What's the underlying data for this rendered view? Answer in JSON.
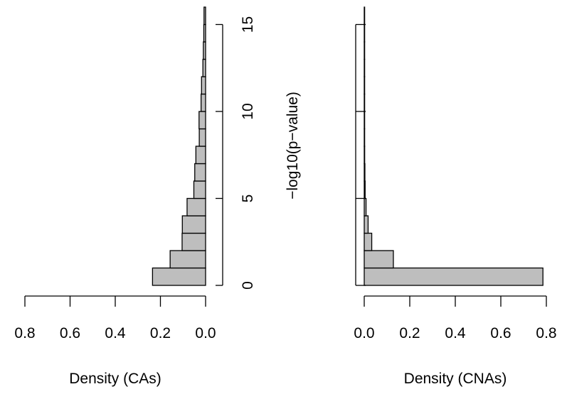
{
  "chart_data": [
    {
      "type": "bar",
      "orientation": "horizontal",
      "direction": "right-to-left",
      "bin_width": 1,
      "bins_start": [
        0,
        1,
        2,
        3,
        4,
        5,
        6,
        7,
        8,
        9,
        10,
        11,
        12,
        13,
        14,
        15
      ],
      "values": [
        0.235,
        0.157,
        0.104,
        0.103,
        0.082,
        0.052,
        0.048,
        0.043,
        0.028,
        0.029,
        0.02,
        0.018,
        0.012,
        0.01,
        0.008,
        0.007
      ],
      "xlabel": "Density (CAs)",
      "ylabel": "",
      "xlim": [
        0.8,
        0.0
      ],
      "ylim": [
        0,
        16
      ],
      "xticks": [
        "0.8",
        "0.6",
        "0.4",
        "0.2",
        "0.0"
      ],
      "yticks": [
        "0",
        "5",
        "10",
        "15"
      ],
      "grid": false
    },
    {
      "type": "bar",
      "orientation": "horizontal",
      "direction": "left-to-right",
      "bin_width": 1,
      "bins_start": [
        0,
        1,
        2,
        3,
        4,
        5,
        6,
        7,
        8,
        9,
        10,
        11,
        12,
        13,
        14,
        15
      ],
      "values": [
        0.785,
        0.128,
        0.033,
        0.017,
        0.008,
        0.004,
        0.003,
        0.002,
        0.001,
        0.001,
        0.0007,
        0.0006,
        0.0005,
        0.0004,
        0.0003,
        0.0002
      ],
      "xlabel": "Density (CNAs)",
      "ylabel": "−log10(p−value)",
      "xlim": [
        0.0,
        0.8
      ],
      "ylim": [
        0,
        16
      ],
      "xticks": [
        "0.0",
        "0.2",
        "0.4",
        "0.6",
        "0.8"
      ],
      "yticks": [
        "",
        "",
        "",
        ""
      ],
      "grid": false
    }
  ]
}
